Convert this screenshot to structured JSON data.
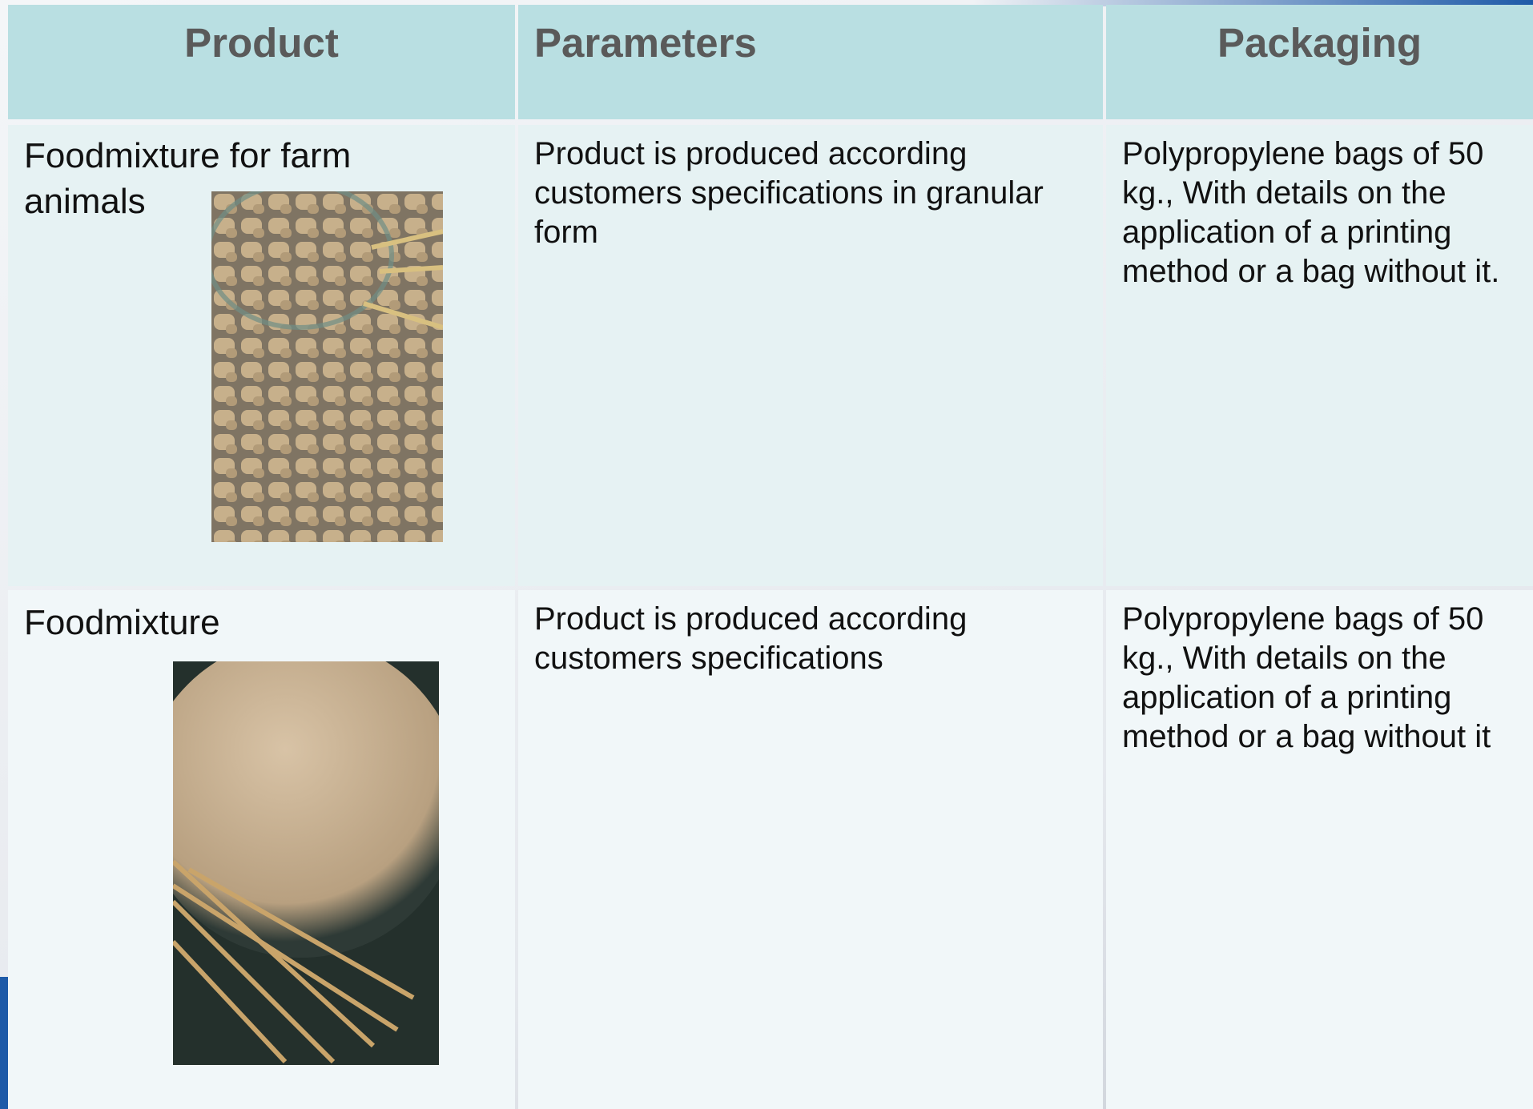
{
  "table": {
    "header": [
      "Product",
      "Parameters",
      "Packaging"
    ],
    "rows": [
      [
        "Foodmixture for farm animals",
        "Product is produced according customers specifications in granular form",
        "Polypropylene bags of 50 kg., With details on the application of a printing method or a bag without it."
      ],
      [
        "Foodmixture",
        "Product is produced according customers specifications",
        "Polypropylene bags of 50 kg., With details on the application of a printing method or a bag without it"
      ]
    ]
  }
}
